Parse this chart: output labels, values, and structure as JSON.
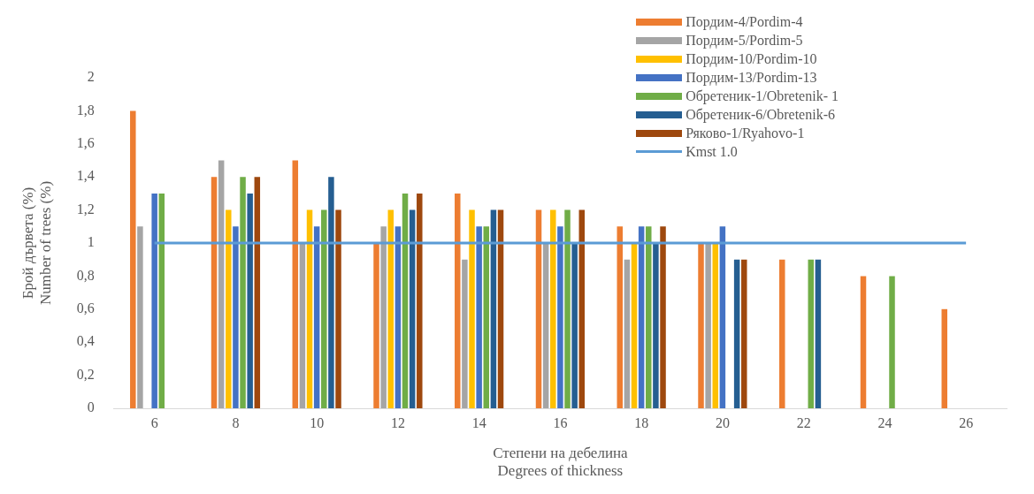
{
  "chart_data": {
    "type": "bar",
    "xlabel": "Степени на дебелина\nDegrees of thickness",
    "ylabel": "Брой дървета (%)\nNumber of trees (%)",
    "categories": [
      "6",
      "8",
      "10",
      "12",
      "14",
      "16",
      "18",
      "20",
      "22",
      "24",
      "26"
    ],
    "series": [
      {
        "name": "Пордим-4/Pordim-4",
        "color": "#ed7d31",
        "values": [
          1.8,
          1.4,
          1.5,
          1.0,
          1.3,
          1.2,
          1.1,
          1.0,
          0.9,
          0.8,
          0.6
        ]
      },
      {
        "name": "Пордим-5/Pordim-5",
        "color": "#a5a5a5",
        "values": [
          1.1,
          1.5,
          1.0,
          1.1,
          0.9,
          1.0,
          0.9,
          1.0,
          null,
          null,
          null
        ]
      },
      {
        "name": "Пордим-10/Pordim-10",
        "color": "#ffc000",
        "values": [
          null,
          1.2,
          1.2,
          1.2,
          1.2,
          1.2,
          1.0,
          1.0,
          null,
          null,
          null
        ]
      },
      {
        "name": "Пордим-13/Pordim-13",
        "color": "#4472c4",
        "values": [
          1.3,
          1.1,
          1.1,
          1.1,
          1.1,
          1.1,
          1.1,
          1.1,
          null,
          null,
          null
        ]
      },
      {
        "name": "Обретеник-1/Obretenik- 1",
        "color": "#70ad47",
        "values": [
          1.3,
          1.4,
          1.2,
          1.3,
          1.1,
          1.2,
          1.1,
          null,
          0.9,
          0.8,
          null
        ]
      },
      {
        "name": "Обретеник-6/Obretenik-6",
        "color": "#255e91",
        "values": [
          null,
          1.3,
          1.4,
          1.2,
          1.2,
          1.0,
          1.0,
          0.9,
          0.9,
          null,
          null
        ]
      },
      {
        "name": "Ряково-1/Ryahovo-1",
        "color": "#9e480e",
        "values": [
          null,
          1.4,
          1.2,
          1.3,
          1.2,
          1.2,
          1.1,
          0.9,
          null,
          null,
          null
        ]
      },
      {
        "name": "Kmst 1.0",
        "type": "line",
        "color": "#5b9bd5",
        "values": [
          1,
          1,
          1,
          1,
          1,
          1,
          1,
          1,
          1,
          1,
          1
        ]
      }
    ],
    "ylim": [
      0,
      2
    ],
    "yticks": [
      {
        "value": 0,
        "label": "0"
      },
      {
        "value": 0.2,
        "label": "0,2"
      },
      {
        "value": 0.4,
        "label": "0,4"
      },
      {
        "value": 0.6,
        "label": "0,6"
      },
      {
        "value": 0.8,
        "label": "0,8"
      },
      {
        "value": 1,
        "label": "1"
      },
      {
        "value": 1.2,
        "label": "1,2"
      },
      {
        "value": 1.4,
        "label": "1,4"
      },
      {
        "value": 1.6,
        "label": "1,6"
      },
      {
        "value": 1.8,
        "label": "1,8"
      },
      {
        "value": 2,
        "label": "2"
      }
    ],
    "grid": false,
    "legend": "top right",
    "marker": "none"
  }
}
